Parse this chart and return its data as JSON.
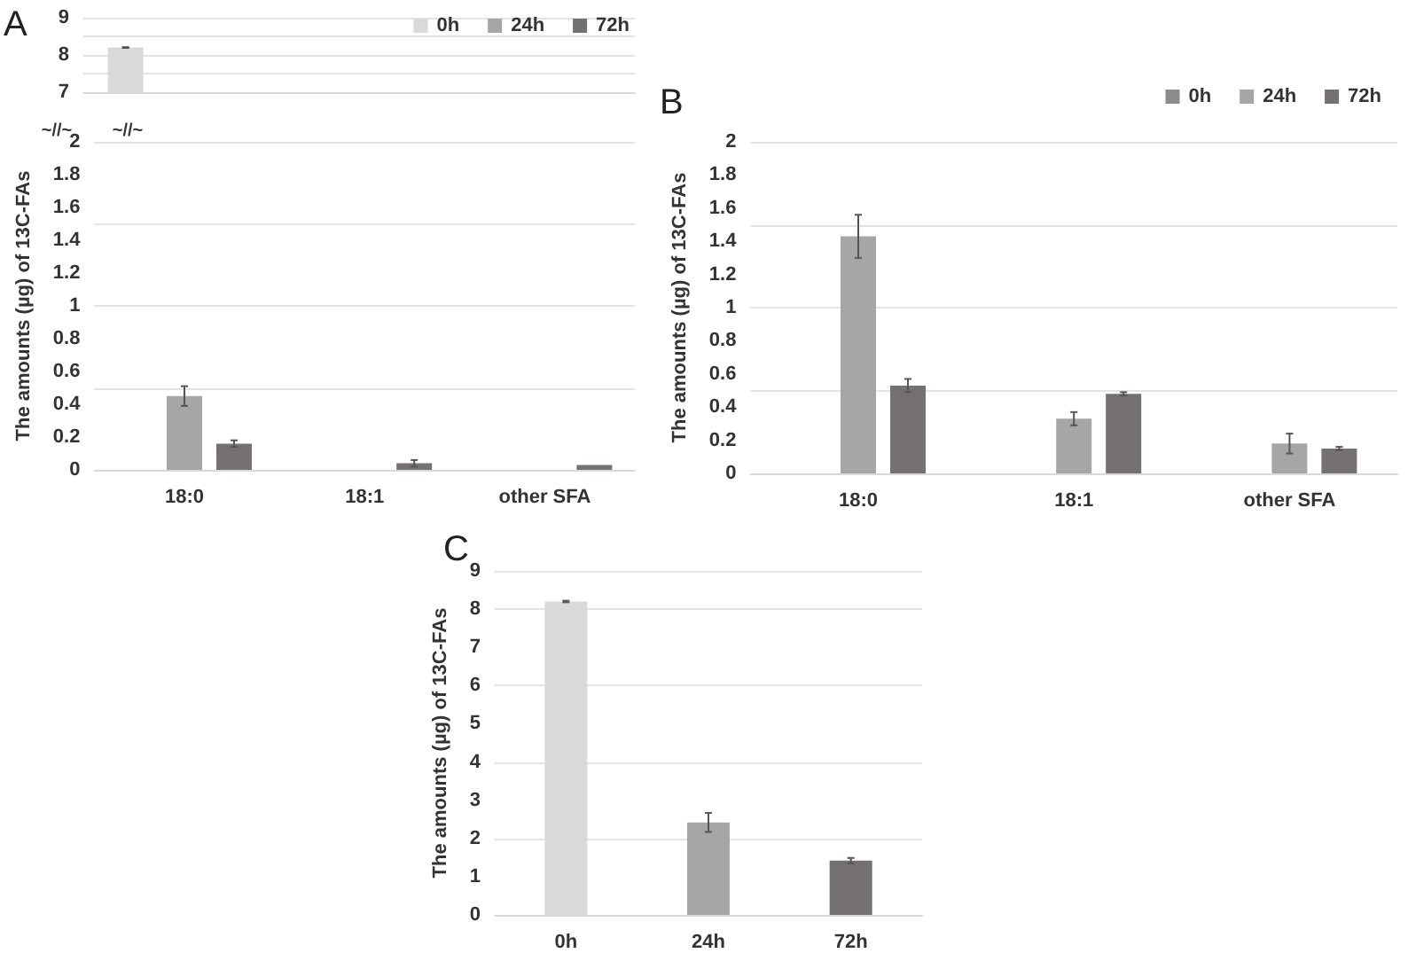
{
  "chart_data": [
    {
      "type": "bar",
      "title": "A",
      "categories": [
        null,
        null,
        null
      ],
      "ylim": [
        7,
        9
      ],
      "yticks": [
        7,
        8,
        9
      ],
      "grid": "y",
      "legend": "top right",
      "tick_labels": "y",
      "series": [
        {
          "name": "0h",
          "color": "#d9d9d9",
          "values": [
            8.2,
            null,
            null
          ],
          "errors": [
            0.01,
            null,
            null
          ]
        },
        {
          "name": "24h",
          "color": "#a6a6a6",
          "values": [
            null,
            null,
            null
          ]
        },
        {
          "name": "72h",
          "color": "#767171",
          "values": [
            null,
            null,
            null
          ]
        }
      ]
    },
    {
      "type": "bar",
      "categories": [
        "18:0",
        "18:1",
        "other SFA"
      ],
      "ylabel": "The amounts (µg) of 13C-FAs",
      "ylim": [
        0,
        2
      ],
      "yticks": [
        0,
        0.2,
        0.4,
        0.6,
        0.8,
        1,
        1.2,
        1.4,
        1.6,
        1.8,
        2
      ],
      "grid": "y",
      "legend": false,
      "annotations": [
        "~//~",
        "~//~"
      ],
      "series": [
        {
          "color": "#d9d9d9",
          "values": [
            null,
            null,
            null
          ]
        },
        {
          "color": "#a6a6a6",
          "values": [
            0.45,
            null,
            null
          ],
          "errors": [
            0.06,
            null,
            null
          ]
        },
        {
          "color": "#767171",
          "values": [
            0.16,
            0.04,
            0.03
          ],
          "errors": [
            0.02,
            0.02,
            null
          ]
        }
      ]
    },
    {
      "type": "bar",
      "title": "B",
      "categories": [
        "18:0",
        "18:1",
        "other SFA"
      ],
      "ylabel": "The amounts (µg) of 13C-FAs",
      "ylim": [
        0,
        2
      ],
      "yticks": [
        0,
        0.2,
        0.4,
        0.6,
        0.8,
        1,
        1.2,
        1.4,
        1.6,
        1.8,
        2
      ],
      "grid": "y",
      "legend": "top right",
      "series": [
        {
          "name": "0h",
          "color": "#8c8c8c",
          "values": [
            null,
            null,
            null
          ]
        },
        {
          "name": "24h",
          "color": "#a6a6a6",
          "values": [
            1.43,
            0.33,
            0.18
          ],
          "errors": [
            0.13,
            0.04,
            0.06
          ]
        },
        {
          "name": "72h",
          "color": "#767171",
          "values": [
            0.53,
            0.48,
            0.15
          ],
          "errors": [
            0.04,
            0.01,
            0.01
          ]
        }
      ]
    },
    {
      "type": "bar",
      "title": "C",
      "categories": [
        "0h",
        "24h",
        "72h"
      ],
      "ylabel": "The amounts (µg) of 13C-FAs",
      "ylim": [
        0,
        9
      ],
      "yticks": [
        0,
        1,
        2,
        3,
        4,
        5,
        6,
        7,
        8,
        9
      ],
      "grid": "y",
      "legend": false,
      "values": [
        8.2,
        2.42,
        1.42
      ],
      "colors": [
        "#d9d9d9",
        "#a6a6a6",
        "#767171"
      ],
      "errors": [
        0.02,
        0.25,
        0.07
      ]
    }
  ]
}
